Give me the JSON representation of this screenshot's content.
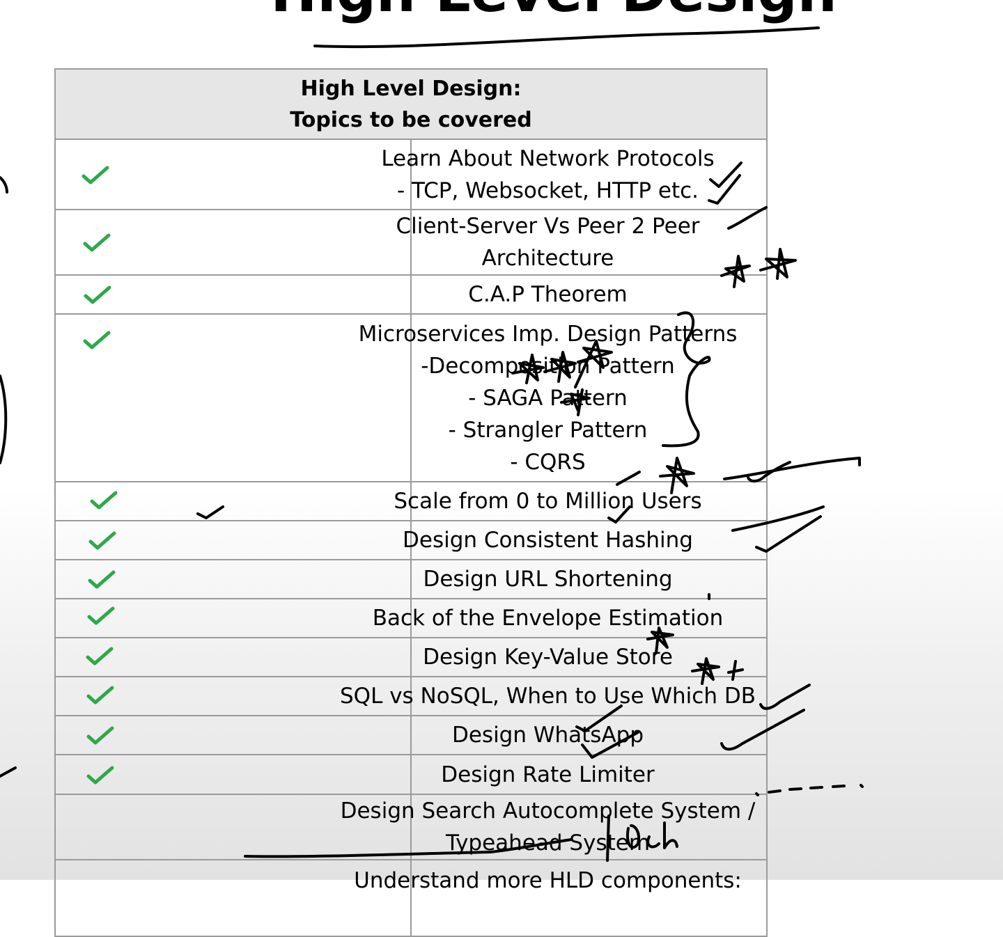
{
  "title": "High Level Design",
  "table": {
    "header": [
      "High Level Design:",
      "Topics to be covered"
    ],
    "rows": [
      {
        "lines": [
          "Learn About Network Protocols",
          "- TCP, Websocket, HTTP etc."
        ],
        "checked": true
      },
      {
        "lines": [
          "Client-Server Vs Peer 2 Peer Architecture"
        ],
        "checked": true
      },
      {
        "lines": [
          "C.A.P Theorem"
        ],
        "checked": true
      },
      {
        "lines": [
          "Microservices Imp. Design Patterns",
          "-Decomposition Pattern",
          "- SAGA Pattern",
          "- Strangler Pattern",
          "- CQRS"
        ],
        "checked": true
      },
      {
        "lines": [
          "Scale from 0 to Million Users"
        ],
        "checked": true
      },
      {
        "lines": [
          "Design Consistent Hashing"
        ],
        "checked": true
      },
      {
        "lines": [
          "Design URL Shortening"
        ],
        "checked": true
      },
      {
        "lines": [
          "Back of the Envelope Estimation"
        ],
        "checked": true
      },
      {
        "lines": [
          "Design Key-Value Store"
        ],
        "checked": true
      },
      {
        "lines": [
          "SQL vs NoSQL, When to Use Which DB"
        ],
        "checked": true
      },
      {
        "lines": [
          "Design WhatsApp"
        ],
        "checked": true
      },
      {
        "lines": [
          "Design Rate Limiter"
        ],
        "checked": true
      },
      {
        "lines": [
          "Design Search Autocomplete System / Typeahead System"
        ],
        "checked": false
      },
      {
        "lines": [
          "Understand more HLD components:"
        ],
        "checked": false
      }
    ]
  },
  "colors": {
    "check": "#2ea84a",
    "ink": "#000000",
    "header_bg": "#e6e6e6",
    "border": "#9a9a9a"
  }
}
